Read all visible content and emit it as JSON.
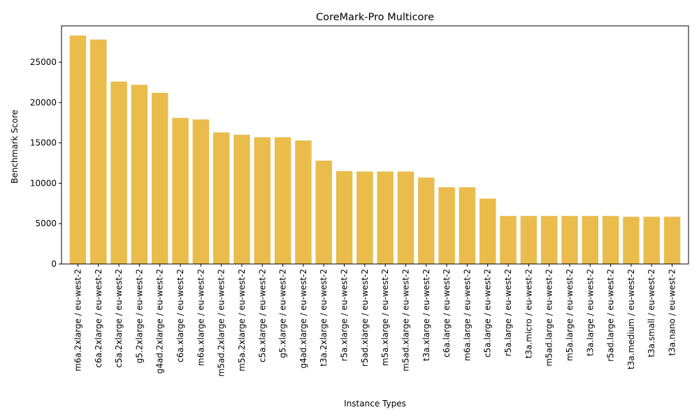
{
  "chart_data": {
    "type": "bar",
    "title": "CoreMark-Pro Multicore",
    "xlabel": "Instance Types",
    "ylabel": "Benchmark Score",
    "ylim": [
      0,
      29500
    ],
    "yticks": [
      0,
      5000,
      10000,
      15000,
      20000,
      25000
    ],
    "bar_color": "#e9bc4c",
    "grid": false,
    "categories": [
      "m6a.2xlarge / eu-west-2",
      "c6a.2xlarge / eu-west-2",
      "c5a.2xlarge / eu-west-2",
      "g5.2xlarge / eu-west-2",
      "g4ad.2xlarge / eu-west-2",
      "c6a.xlarge / eu-west-2",
      "m6a.xlarge / eu-west-2",
      "m5ad.2xlarge / eu-west-2",
      "m5a.2xlarge / eu-west-2",
      "c5a.xlarge / eu-west-2",
      "g5.xlarge / eu-west-2",
      "g4ad.xlarge / eu-west-2",
      "t3a.2xlarge / eu-west-2",
      "r5a.xlarge / eu-west-2",
      "r5ad.xlarge / eu-west-2",
      "m5a.xlarge / eu-west-2",
      "m5ad.xlarge / eu-west-2",
      "t3a.xlarge / eu-west-2",
      "c6a.large / eu-west-2",
      "m6a.large / eu-west-2",
      "c5a.large / eu-west-2",
      "r5a.large / eu-west-2",
      "t3a.micro / eu-west-2",
      "m5ad.large / eu-west-2",
      "m5a.large / eu-west-2",
      "t3a.large / eu-west-2",
      "r5ad.large / eu-west-2",
      "t3a.medium / eu-west-2",
      "t3a.small / eu-west-2",
      "t3a.nano / eu-west-2"
    ],
    "values": [
      28300,
      27800,
      22600,
      22200,
      21200,
      18100,
      17900,
      16300,
      16000,
      15700,
      15700,
      15300,
      12800,
      11500,
      11450,
      11450,
      11450,
      10700,
      9500,
      9500,
      8100,
      5950,
      5950,
      5950,
      5950,
      5950,
      5950,
      5850,
      5850,
      5850
    ]
  }
}
